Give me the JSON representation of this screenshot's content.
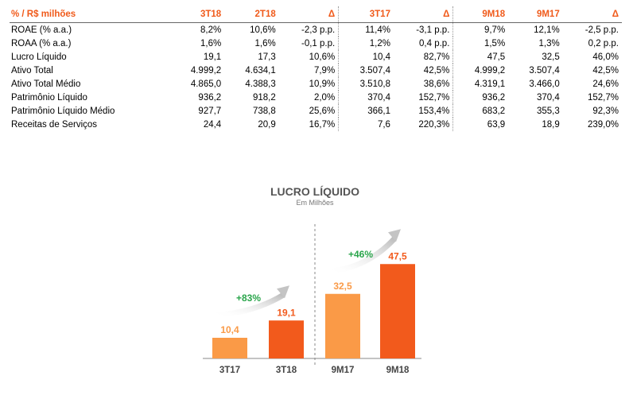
{
  "table": {
    "headers": [
      "% / R$ milhões",
      "3T18",
      "2T18",
      "Δ",
      "3T17",
      "Δ",
      "9M18",
      "9M17",
      "Δ"
    ],
    "rows": [
      [
        "ROAE (% a.a.)",
        "8,2%",
        "10,6%",
        "-2,3 p.p.",
        "11,4%",
        "-3,1 p.p.",
        "9,7%",
        "12,1%",
        "-2,5 p.p."
      ],
      [
        "ROAA (% a.a.)",
        "1,6%",
        "1,6%",
        "-0,1 p.p.",
        "1,2%",
        "0,4 p.p.",
        "1,5%",
        "1,3%",
        "0,2 p.p."
      ],
      [
        "Lucro Líquido",
        "19,1",
        "17,3",
        "10,6%",
        "10,4",
        "82,7%",
        "47,5",
        "32,5",
        "46,0%"
      ],
      [
        "Ativo Total",
        "4.999,2",
        "4.634,1",
        "7,9%",
        "3.507,4",
        "42,5%",
        "4.999,2",
        "3.507,4",
        "42,5%"
      ],
      [
        "Ativo Total Médio",
        "4.865,0",
        "4.388,3",
        "10,9%",
        "3.510,8",
        "38,6%",
        "4.319,1",
        "3.466,0",
        "24,6%"
      ],
      [
        "Patrimônio Líquido",
        "936,2",
        "918,2",
        "2,0%",
        "370,4",
        "152,7%",
        "936,2",
        "370,4",
        "152,7%"
      ],
      [
        "Patrimônio Líquido Médio",
        "927,7",
        "738,8",
        "25,6%",
        "366,1",
        "153,4%",
        "683,2",
        "355,3",
        "92,3%"
      ],
      [
        "Receitas de Serviços",
        "24,4",
        "20,9",
        "16,7%",
        "7,6",
        "220,3%",
        "63,9",
        "18,9",
        "239,0%"
      ]
    ]
  },
  "chart_data": {
    "type": "bar",
    "title": "LUCRO LÍQUIDO",
    "subtitle": "Em Milhões",
    "categories": [
      "3T17",
      "3T18",
      "9M17",
      "9M18"
    ],
    "values": [
      10.4,
      19.1,
      32.5,
      47.5
    ],
    "value_labels": [
      "10,4",
      "19,1",
      "32,5",
      "47,5"
    ],
    "ylim": [
      0,
      50
    ],
    "growth_annotations": [
      {
        "label": "+83%",
        "from": "3T17",
        "to": "3T18"
      },
      {
        "label": "+46%",
        "from": "9M17",
        "to": "9M18"
      }
    ],
    "colors": {
      "light": "#fa9a47",
      "dark": "#f25a1c",
      "growth": "#2aa54b"
    }
  }
}
